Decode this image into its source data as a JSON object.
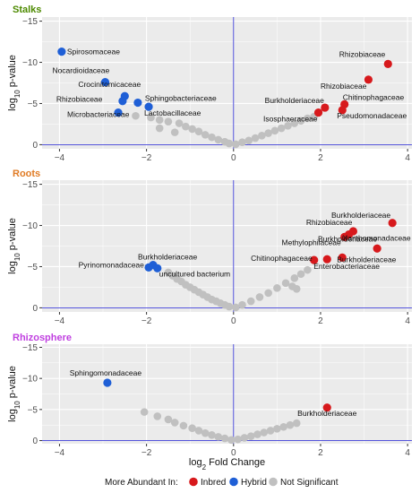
{
  "colors": {
    "inbred": "#d7191c",
    "hybrid": "#1f5fd6",
    "not_significant": "#c0c0c0",
    "panel_bg": "#ebebeb",
    "grid": "#ffffff",
    "ref_line": "#3b3bd6",
    "title_stalks": "#4d8a00",
    "title_roots": "#e07b24",
    "title_rhizosphere": "#c040e0"
  },
  "x_axis": {
    "label_prefix": "log",
    "label_sub": "2",
    "label_suffix": " Fold Change"
  },
  "y_axis": {
    "label_prefix": "log",
    "label_sub": "10",
    "label_suffix": " p-value"
  },
  "legend": {
    "title": "More Abundant In:",
    "items": [
      {
        "label": "Inbred",
        "key": "inbred"
      },
      {
        "label": "Hybrid",
        "key": "hybrid"
      },
      {
        "label": "Not Significant",
        "key": "not_significant"
      }
    ]
  },
  "chart_data": [
    {
      "type": "scatter",
      "title": "Stalks",
      "title_color_key": "title_stalks",
      "xlim": [
        -4.4,
        4.1
      ],
      "ylim": [
        0.5,
        -15.5
      ],
      "xticks": [
        -4,
        -2,
        0,
        2,
        4
      ],
      "yticks": [
        -15,
        -10,
        -5,
        0
      ],
      "points": [
        {
          "x": -3.95,
          "y": -11.3,
          "group": "hybrid",
          "label": "Spirosomaceae"
        },
        {
          "x": -2.95,
          "y": -7.6,
          "group": "hybrid",
          "label": "Nocardioidaceae"
        },
        {
          "x": -2.5,
          "y": -5.9,
          "group": "hybrid",
          "label": "Crocinitomicaceae"
        },
        {
          "x": -2.55,
          "y": -5.3,
          "group": "hybrid",
          "label": "Rhizobiaceae"
        },
        {
          "x": -2.2,
          "y": -5.1,
          "group": "hybrid",
          "label": "Sphingobacteriaceae"
        },
        {
          "x": -1.95,
          "y": -4.6,
          "group": "hybrid",
          "label": "Lactobacillaceae"
        },
        {
          "x": -2.65,
          "y": -3.9,
          "group": "hybrid",
          "label": "Microbacteriaceae"
        },
        {
          "x": 3.55,
          "y": -9.8,
          "group": "inbred",
          "label": "Rhizobiaceae"
        },
        {
          "x": 3.1,
          "y": -7.9,
          "group": "inbred",
          "label": "Rhizobiaceae"
        },
        {
          "x": 2.55,
          "y": -4.9,
          "group": "inbred",
          "label": "Chitinophagaceae"
        },
        {
          "x": 2.1,
          "y": -4.5,
          "group": "inbred",
          "label": "Burkholderiaceae"
        },
        {
          "x": 2.5,
          "y": -4.2,
          "group": "inbred",
          "label": "Pseudomonadaceae"
        },
        {
          "x": 1.95,
          "y": -3.9,
          "group": "inbred",
          "label": "Isosphaeraceae"
        },
        {
          "x": -2.25,
          "y": -3.5,
          "group": "not_significant"
        },
        {
          "x": -1.9,
          "y": -3.3,
          "group": "not_significant"
        },
        {
          "x": -1.7,
          "y": -3.0,
          "group": "not_significant"
        },
        {
          "x": -1.5,
          "y": -2.8,
          "group": "not_significant"
        },
        {
          "x": -1.25,
          "y": -2.6,
          "group": "not_significant"
        },
        {
          "x": -1.1,
          "y": -2.2,
          "group": "not_significant"
        },
        {
          "x": -1.7,
          "y": -2.0,
          "group": "not_significant"
        },
        {
          "x": -0.95,
          "y": -1.9,
          "group": "not_significant"
        },
        {
          "x": -0.8,
          "y": -1.6,
          "group": "not_significant"
        },
        {
          "x": -1.35,
          "y": -1.5,
          "group": "not_significant"
        },
        {
          "x": -0.65,
          "y": -1.2,
          "group": "not_significant"
        },
        {
          "x": -0.5,
          "y": -0.9,
          "group": "not_significant"
        },
        {
          "x": -0.35,
          "y": -0.6,
          "group": "not_significant"
        },
        {
          "x": -0.2,
          "y": -0.35,
          "group": "not_significant"
        },
        {
          "x": -0.1,
          "y": -0.15,
          "group": "not_significant"
        },
        {
          "x": 0.05,
          "y": -0.05,
          "group": "not_significant"
        },
        {
          "x": 0.2,
          "y": -0.3,
          "group": "not_significant"
        },
        {
          "x": 0.35,
          "y": -0.5,
          "group": "not_significant"
        },
        {
          "x": 0.5,
          "y": -0.8,
          "group": "not_significant"
        },
        {
          "x": 0.65,
          "y": -1.1,
          "group": "not_significant"
        },
        {
          "x": 0.8,
          "y": -1.4,
          "group": "not_significant"
        },
        {
          "x": 0.95,
          "y": -1.7,
          "group": "not_significant"
        },
        {
          "x": 1.1,
          "y": -2.0,
          "group": "not_significant"
        },
        {
          "x": 1.25,
          "y": -2.3,
          "group": "not_significant"
        },
        {
          "x": 1.4,
          "y": -2.6,
          "group": "not_significant"
        },
        {
          "x": 1.55,
          "y": -2.9,
          "group": "not_significant"
        },
        {
          "x": 1.7,
          "y": -3.2,
          "group": "not_significant"
        },
        {
          "x": 1.85,
          "y": -3.4,
          "group": "not_significant"
        }
      ]
    },
    {
      "type": "scatter",
      "title": "Roots",
      "title_color_key": "title_roots",
      "xlim": [
        -4.4,
        4.1
      ],
      "ylim": [
        0.5,
        -15.5
      ],
      "xticks": [
        -4,
        -2,
        0,
        2,
        4
      ],
      "yticks": [
        -15,
        -10,
        -5,
        0
      ],
      "points": [
        {
          "x": -1.95,
          "y": -4.9,
          "group": "hybrid",
          "label": "Burkholderiaceae"
        },
        {
          "x": -1.85,
          "y": -5.2,
          "group": "hybrid",
          "label": "Pyrinomonadaceae"
        },
        {
          "x": -1.75,
          "y": -4.8,
          "group": "hybrid",
          "label": "uncultured bacterium"
        },
        {
          "x": 3.65,
          "y": -10.3,
          "group": "inbred",
          "label": "Burkholderiaceae"
        },
        {
          "x": 2.75,
          "y": -9.3,
          "group": "inbred",
          "label": "Rhizobiaceae"
        },
        {
          "x": 2.65,
          "y": -8.9,
          "group": "inbred",
          "label": "Xanthomonadaceae"
        },
        {
          "x": 2.55,
          "y": -8.6,
          "group": "inbred",
          "label": "Methylophilaceae"
        },
        {
          "x": 3.3,
          "y": -7.2,
          "group": "inbred",
          "label": "Burkholderiaceae"
        },
        {
          "x": 2.5,
          "y": -6.1,
          "group": "inbred",
          "label": "Burkholderiaceae"
        },
        {
          "x": 2.15,
          "y": -5.9,
          "group": "inbred",
          "label": "Enterobacteriaceae"
        },
        {
          "x": 1.85,
          "y": -5.8,
          "group": "inbred",
          "label": "Chitinophagaceae"
        },
        {
          "x": -1.5,
          "y": -4.3,
          "group": "not_significant"
        },
        {
          "x": -1.4,
          "y": -3.9,
          "group": "not_significant"
        },
        {
          "x": -1.3,
          "y": -3.5,
          "group": "not_significant"
        },
        {
          "x": -1.2,
          "y": -3.2,
          "group": "not_significant"
        },
        {
          "x": -1.1,
          "y": -2.8,
          "group": "not_significant"
        },
        {
          "x": -1.0,
          "y": -2.5,
          "group": "not_significant"
        },
        {
          "x": -0.9,
          "y": -2.2,
          "group": "not_significant"
        },
        {
          "x": -0.8,
          "y": -1.9,
          "group": "not_significant"
        },
        {
          "x": -0.7,
          "y": -1.6,
          "group": "not_significant"
        },
        {
          "x": -0.6,
          "y": -1.3,
          "group": "not_significant"
        },
        {
          "x": -0.5,
          "y": -1.0,
          "group": "not_significant"
        },
        {
          "x": -0.4,
          "y": -0.8,
          "group": "not_significant"
        },
        {
          "x": -0.3,
          "y": -0.55,
          "group": "not_significant"
        },
        {
          "x": -0.2,
          "y": -0.35,
          "group": "not_significant"
        },
        {
          "x": -0.1,
          "y": -0.15,
          "group": "not_significant"
        },
        {
          "x": 0.05,
          "y": -0.05,
          "group": "not_significant"
        },
        {
          "x": 0.2,
          "y": -0.35,
          "group": "not_significant"
        },
        {
          "x": 0.4,
          "y": -0.8,
          "group": "not_significant"
        },
        {
          "x": 0.6,
          "y": -1.3,
          "group": "not_significant"
        },
        {
          "x": 0.8,
          "y": -1.8,
          "group": "not_significant"
        },
        {
          "x": 1.0,
          "y": -2.4,
          "group": "not_significant"
        },
        {
          "x": 1.2,
          "y": -3.0,
          "group": "not_significant"
        },
        {
          "x": 1.4,
          "y": -3.6,
          "group": "not_significant"
        },
        {
          "x": 1.55,
          "y": -4.1,
          "group": "not_significant"
        },
        {
          "x": 1.7,
          "y": -4.6,
          "group": "not_significant"
        },
        {
          "x": 1.35,
          "y": -2.6,
          "group": "not_significant"
        },
        {
          "x": 1.45,
          "y": -2.3,
          "group": "not_significant"
        }
      ]
    },
    {
      "type": "scatter",
      "title": "Rhizosphere",
      "title_color_key": "title_rhizosphere",
      "xlim": [
        -4.4,
        4.1
      ],
      "ylim": [
        0.5,
        -15.5
      ],
      "xticks": [
        -4,
        -2,
        0,
        2,
        4
      ],
      "yticks": [
        -15,
        -10,
        -5,
        0
      ],
      "points": [
        {
          "x": -2.9,
          "y": -9.3,
          "group": "hybrid",
          "label": "Sphingomonadaceae"
        },
        {
          "x": 2.15,
          "y": -5.3,
          "group": "inbred",
          "label": "Burkholderiaceae"
        },
        {
          "x": -2.05,
          "y": -4.6,
          "group": "not_significant"
        },
        {
          "x": -1.75,
          "y": -3.9,
          "group": "not_significant"
        },
        {
          "x": -1.5,
          "y": -3.4,
          "group": "not_significant"
        },
        {
          "x": -1.35,
          "y": -2.9,
          "group": "not_significant"
        },
        {
          "x": -1.15,
          "y": -2.4,
          "group": "not_significant"
        },
        {
          "x": -0.95,
          "y": -2.0,
          "group": "not_significant"
        },
        {
          "x": -0.8,
          "y": -1.6,
          "group": "not_significant"
        },
        {
          "x": -0.65,
          "y": -1.2,
          "group": "not_significant"
        },
        {
          "x": -0.5,
          "y": -0.9,
          "group": "not_significant"
        },
        {
          "x": -0.35,
          "y": -0.6,
          "group": "not_significant"
        },
        {
          "x": -0.2,
          "y": -0.35,
          "group": "not_significant"
        },
        {
          "x": -0.05,
          "y": -0.1,
          "group": "not_significant"
        },
        {
          "x": 0.1,
          "y": -0.2,
          "group": "not_significant"
        },
        {
          "x": 0.25,
          "y": -0.45,
          "group": "not_significant"
        },
        {
          "x": 0.4,
          "y": -0.7,
          "group": "not_significant"
        },
        {
          "x": 0.55,
          "y": -1.0,
          "group": "not_significant"
        },
        {
          "x": 0.7,
          "y": -1.3,
          "group": "not_significant"
        },
        {
          "x": 0.85,
          "y": -1.6,
          "group": "not_significant"
        },
        {
          "x": 1.0,
          "y": -1.9,
          "group": "not_significant"
        },
        {
          "x": 1.15,
          "y": -2.2,
          "group": "not_significant"
        },
        {
          "x": 1.3,
          "y": -2.5,
          "group": "not_significant"
        },
        {
          "x": 1.45,
          "y": -2.8,
          "group": "not_significant"
        }
      ]
    }
  ]
}
